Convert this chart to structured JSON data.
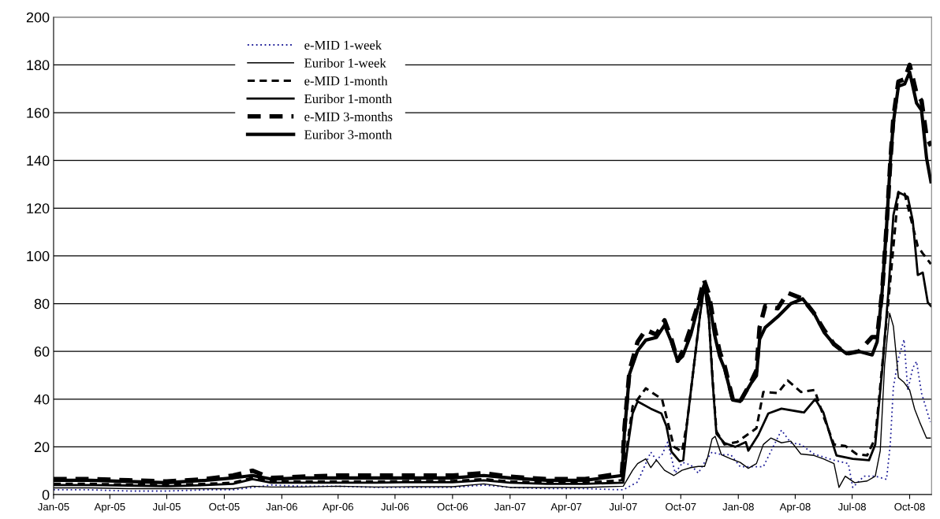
{
  "chart_data": {
    "type": "line",
    "ylim": [
      0,
      200
    ],
    "yticks": [
      0,
      20,
      40,
      60,
      80,
      100,
      120,
      140,
      160,
      180,
      200
    ],
    "xlim": [
      "2005-01-01",
      "2008-11-05"
    ],
    "xticks": [
      {
        "value": "2005-01-01",
        "label": "Jan-05"
      },
      {
        "value": "2005-04-01",
        "label": "Apr-05"
      },
      {
        "value": "2005-07-01",
        "label": "Jul-05"
      },
      {
        "value": "2005-10-01",
        "label": "Oct-05"
      },
      {
        "value": "2006-01-01",
        "label": "Jan-06"
      },
      {
        "value": "2006-04-01",
        "label": "Apr-06"
      },
      {
        "value": "2006-07-01",
        "label": "Jul-06"
      },
      {
        "value": "2006-10-01",
        "label": "Oct-06"
      },
      {
        "value": "2007-01-01",
        "label": "Jan-07"
      },
      {
        "value": "2007-04-01",
        "label": "Apr-07"
      },
      {
        "value": "2007-07-01",
        "label": "Jul-07"
      },
      {
        "value": "2007-10-01",
        "label": "Oct-07"
      },
      {
        "value": "2008-01-01",
        "label": "Jan-08"
      },
      {
        "value": "2008-04-01",
        "label": "Apr-08"
      },
      {
        "value": "2008-07-01",
        "label": "Jul-08"
      },
      {
        "value": "2008-10-01",
        "label": "Oct-08"
      }
    ],
    "grid": "y",
    "legend": "top left",
    "marker": "none",
    "series": [
      {
        "name": "e-MID 1-week",
        "color": "#1f1f99",
        "line_style": "dotted",
        "x": [
          "2005-01-01",
          "2005-03-01",
          "2005-05-01",
          "2005-07-01",
          "2005-09-01",
          "2005-10-15",
          "2005-11-15",
          "2005-12-15",
          "2006-02-01",
          "2006-04-01",
          "2006-06-01",
          "2006-08-01",
          "2006-10-01",
          "2006-11-20",
          "2007-01-01",
          "2007-03-01",
          "2007-05-01",
          "2007-07-01",
          "2007-07-24",
          "2007-08-14",
          "2007-08-23",
          "2007-09-01",
          "2007-09-10",
          "2007-09-22",
          "2007-10-04",
          "2007-10-17",
          "2007-10-29",
          "2007-11-08",
          "2007-11-20",
          "2007-12-05",
          "2007-12-20",
          "2008-01-04",
          "2008-02-10",
          "2008-03-10",
          "2008-03-25",
          "2008-04-10",
          "2008-05-01",
          "2008-06-02",
          "2008-06-25",
          "2008-07-02",
          "2008-07-20",
          "2008-08-07",
          "2008-08-25",
          "2008-08-31",
          "2008-09-05",
          "2008-09-13",
          "2008-09-22",
          "2008-09-28",
          "2008-10-06",
          "2008-10-12",
          "2008-10-20",
          "2008-11-03"
        ],
        "values": [
          2,
          2,
          1.5,
          1.5,
          2,
          2,
          3,
          4,
          3.5,
          3.5,
          3,
          3,
          3,
          4,
          3,
          2.5,
          2.5,
          2,
          5.3,
          17.8,
          14.5,
          16.7,
          22,
          9,
          13.5,
          12.4,
          9,
          13.5,
          17.8,
          16.7,
          16.7,
          11.7,
          11.7,
          27,
          21.7,
          21,
          17,
          14.4,
          13,
          3,
          7.7,
          7.7,
          6.4,
          21,
          45,
          57,
          65,
          43.8,
          53,
          55.8,
          42.5,
          30.4
        ]
      },
      {
        "name": "Euribor 1-week",
        "color": "#000000",
        "line_style": "solid",
        "x": [
          "2005-01-01",
          "2005-03-01",
          "2005-05-01",
          "2005-07-01",
          "2005-09-01",
          "2005-10-15",
          "2005-11-15",
          "2005-12-15",
          "2006-02-01",
          "2006-04-01",
          "2006-06-01",
          "2006-08-01",
          "2006-10-01",
          "2006-11-20",
          "2007-01-01",
          "2007-03-01",
          "2007-05-01",
          "2007-07-01",
          "2007-07-16",
          "2007-07-24",
          "2007-08-06",
          "2007-08-14",
          "2007-08-23",
          "2007-09-05",
          "2007-09-20",
          "2007-10-03",
          "2007-10-17",
          "2007-10-29",
          "2007-11-08",
          "2007-11-13",
          "2007-11-20",
          "2007-11-25",
          "2007-12-05",
          "2007-12-20",
          "2008-01-04",
          "2008-01-17",
          "2008-01-30",
          "2008-02-10",
          "2008-02-22",
          "2008-03-10",
          "2008-03-25",
          "2008-04-10",
          "2008-05-01",
          "2008-05-16",
          "2008-06-02",
          "2008-06-10",
          "2008-06-20",
          "2008-07-05",
          "2008-07-25",
          "2008-08-07",
          "2008-08-15",
          "2008-08-22",
          "2008-08-30",
          "2008-09-05",
          "2008-09-13",
          "2008-09-22",
          "2008-10-01",
          "2008-10-09",
          "2008-10-17",
          "2008-10-28",
          "2008-11-03"
        ],
        "values": [
          2.8,
          2.8,
          2.5,
          2.5,
          2.5,
          2.5,
          3.5,
          3.2,
          3.2,
          3.5,
          3.2,
          3.3,
          3.3,
          4.5,
          3,
          3,
          3,
          3.5,
          10.2,
          13,
          15,
          11.3,
          14.5,
          10.2,
          8,
          10.2,
          11.3,
          11.8,
          11.8,
          15.6,
          23.3,
          24.4,
          16.7,
          15,
          13.5,
          11,
          13,
          21,
          23.7,
          21.7,
          22.4,
          17,
          16.4,
          15,
          13,
          3,
          7.7,
          5,
          5.7,
          7.7,
          18.4,
          54.5,
          76,
          70.5,
          49,
          47,
          43.8,
          35.8,
          30.4,
          23.7,
          23.7
        ]
      },
      {
        "name": "e-MID 1-month",
        "color": "#000000",
        "line_style": "dashed",
        "x": [
          "2005-01-01",
          "2005-03-01",
          "2005-05-01",
          "2005-07-01",
          "2005-09-01",
          "2005-10-15",
          "2005-11-15",
          "2005-12-15",
          "2006-02-01",
          "2006-04-01",
          "2006-06-01",
          "2006-08-01",
          "2006-10-01",
          "2006-11-20",
          "2007-01-01",
          "2007-03-01",
          "2007-05-01",
          "2007-06-29",
          "2007-07-07",
          "2007-07-16",
          "2007-08-06",
          "2007-09-01",
          "2007-09-20",
          "2007-10-03",
          "2007-10-11",
          "2007-10-22",
          "2007-11-01",
          "2007-11-08",
          "2007-11-15",
          "2007-11-21",
          "2007-11-27",
          "2007-12-10",
          "2007-12-30",
          "2008-01-30",
          "2008-02-10",
          "2008-03-04",
          "2008-03-20",
          "2008-04-10",
          "2008-05-02",
          "2008-05-16",
          "2008-06-02",
          "2008-06-20",
          "2008-07-08",
          "2008-07-25",
          "2008-08-07",
          "2008-08-28",
          "2008-09-13",
          "2008-09-23",
          "2008-10-14",
          "2008-10-22",
          "2008-11-04"
        ],
        "values": [
          4.5,
          4.5,
          4.2,
          4,
          4.5,
          5,
          7,
          5.5,
          5.5,
          5.5,
          5.5,
          5.7,
          5.7,
          6.5,
          5.5,
          5,
          5,
          6,
          20,
          37,
          44.5,
          40,
          20,
          18,
          30,
          54,
          76,
          88,
          74,
          48,
          26.5,
          21,
          22,
          27.8,
          43,
          42.5,
          47.8,
          43,
          43.8,
          33,
          21,
          20.4,
          17,
          16.4,
          23.7,
          81,
          126.7,
          126,
          104,
          101,
          96.6
        ]
      },
      {
        "name": "Euribor 1-month",
        "color": "#000000",
        "line_style": "solid",
        "x": [
          "2005-01-01",
          "2005-03-01",
          "2005-05-01",
          "2005-07-01",
          "2005-09-01",
          "2005-10-15",
          "2005-11-15",
          "2005-12-15",
          "2006-02-01",
          "2006-04-01",
          "2006-06-01",
          "2006-08-01",
          "2006-10-01",
          "2006-11-20",
          "2007-01-01",
          "2007-03-01",
          "2007-05-01",
          "2007-07-01",
          "2007-07-07",
          "2007-07-16",
          "2007-07-24",
          "2007-08-14",
          "2007-08-31",
          "2007-09-08",
          "2007-09-16",
          "2007-09-29",
          "2007-10-05",
          "2007-10-11",
          "2007-10-22",
          "2007-11-01",
          "2007-11-08",
          "2007-11-15",
          "2007-11-21",
          "2007-11-27",
          "2007-12-10",
          "2007-12-27",
          "2008-01-13",
          "2008-01-17",
          "2008-02-02",
          "2008-02-18",
          "2008-03-10",
          "2008-04-15",
          "2008-05-03",
          "2008-05-16",
          "2008-05-29",
          "2008-06-06",
          "2008-07-02",
          "2008-07-28",
          "2008-08-07",
          "2008-08-18",
          "2008-08-28",
          "2008-09-05",
          "2008-09-13",
          "2008-09-28",
          "2008-10-06",
          "2008-10-14",
          "2008-10-22",
          "2008-10-30",
          "2008-11-04"
        ],
        "values": [
          4,
          4,
          3.8,
          3.5,
          4,
          4.5,
          6.5,
          5,
          5,
          5,
          5,
          5.2,
          5.2,
          6,
          5,
          4.5,
          4.5,
          5,
          18,
          34,
          39,
          36,
          34,
          28.7,
          18,
          14,
          14.5,
          30,
          54,
          75.6,
          87.6,
          73.5,
          47,
          25.5,
          21.6,
          20,
          22,
          18.4,
          25,
          34,
          36,
          34.4,
          40,
          34.4,
          23,
          16.4,
          15,
          14.4,
          21,
          52,
          85,
          117,
          126.7,
          124.7,
          114.7,
          92,
          93,
          80.5,
          79
        ]
      },
      {
        "name": "e-MID 3-months",
        "color": "#000000",
        "line_style": "dashed",
        "x": [
          "2005-01-01",
          "2005-03-01",
          "2005-05-01",
          "2005-07-01",
          "2005-09-01",
          "2005-10-15",
          "2005-11-15",
          "2005-12-15",
          "2006-02-01",
          "2006-04-01",
          "2006-06-01",
          "2006-08-01",
          "2006-10-01",
          "2006-11-20",
          "2007-01-01",
          "2007-03-01",
          "2007-05-01",
          "2007-06-29",
          "2007-07-03",
          "2007-07-11",
          "2007-07-24",
          "2007-08-06",
          "2007-08-23",
          "2007-09-05",
          "2007-09-15",
          "2007-09-26",
          "2007-10-04",
          "2007-10-17",
          "2007-10-29",
          "2007-11-07",
          "2007-11-15",
          "2007-11-24",
          "2007-12-02",
          "2007-12-10",
          "2007-12-23",
          "2008-01-04",
          "2008-01-21",
          "2008-01-30",
          "2008-02-04",
          "2008-02-13",
          "2008-03-04",
          "2008-03-20",
          "2008-04-13",
          "2008-05-01",
          "2008-05-17",
          "2008-06-02",
          "2008-06-22",
          "2008-07-12",
          "2008-08-02",
          "2008-08-10",
          "2008-08-18",
          "2008-08-25",
          "2008-08-31",
          "2008-09-05",
          "2008-09-13",
          "2008-09-23",
          "2008-10-01",
          "2008-10-12",
          "2008-10-20",
          "2008-10-28",
          "2008-11-04"
        ],
        "values": [
          6.5,
          6.5,
          6,
          5.5,
          6.5,
          8,
          10,
          7,
          7.5,
          8,
          8,
          8,
          8,
          9,
          7.5,
          6.5,
          6.5,
          9,
          28,
          52,
          64,
          69,
          67,
          73,
          66,
          56,
          60,
          70,
          80,
          90,
          84,
          70,
          60,
          54,
          40,
          39,
          47,
          52,
          70,
          79,
          78,
          84.5,
          82,
          76,
          69,
          63,
          59,
          60,
          66,
          66,
          85,
          112,
          139,
          158,
          173,
          174,
          180,
          168,
          165,
          150,
          146
        ]
      },
      {
        "name": "Euribor 3-month",
        "color": "#000000",
        "line_style": "solid",
        "x": [
          "2005-01-01",
          "2005-03-01",
          "2005-05-01",
          "2005-07-01",
          "2005-09-01",
          "2005-10-15",
          "2005-11-15",
          "2005-12-15",
          "2006-02-01",
          "2006-04-01",
          "2006-06-01",
          "2006-08-01",
          "2006-10-01",
          "2006-11-20",
          "2007-01-01",
          "2007-03-01",
          "2007-05-01",
          "2007-06-29",
          "2007-07-03",
          "2007-07-11",
          "2007-07-24",
          "2007-08-06",
          "2007-08-23",
          "2007-09-05",
          "2007-09-15",
          "2007-09-26",
          "2007-10-04",
          "2007-10-17",
          "2007-10-29",
          "2007-11-07",
          "2007-11-15",
          "2007-11-24",
          "2007-12-02",
          "2007-12-10",
          "2007-12-23",
          "2008-01-04",
          "2008-01-21",
          "2008-01-30",
          "2008-02-04",
          "2008-02-13",
          "2008-03-04",
          "2008-03-25",
          "2008-04-13",
          "2008-05-01",
          "2008-05-17",
          "2008-06-02",
          "2008-06-22",
          "2008-07-12",
          "2008-08-02",
          "2008-08-10",
          "2008-08-18",
          "2008-08-25",
          "2008-08-31",
          "2008-09-05",
          "2008-09-13",
          "2008-09-23",
          "2008-10-01",
          "2008-10-12",
          "2008-10-20",
          "2008-10-28",
          "2008-11-04"
        ],
        "values": [
          6,
          6,
          5.5,
          5,
          6,
          7,
          8,
          6.5,
          7,
          7,
          7,
          7,
          7,
          8,
          7,
          6,
          6,
          8,
          26.5,
          50.5,
          60.3,
          64.7,
          65.8,
          71,
          64.7,
          56,
          58,
          67,
          79,
          87.6,
          82,
          67,
          58,
          52.7,
          39.6,
          39,
          46.5,
          49.8,
          65,
          70,
          74.5,
          80,
          82,
          76,
          68,
          63,
          59,
          60,
          58.5,
          64,
          85,
          112,
          139,
          156,
          171,
          172,
          177,
          164,
          161,
          141,
          131
        ]
      }
    ]
  }
}
